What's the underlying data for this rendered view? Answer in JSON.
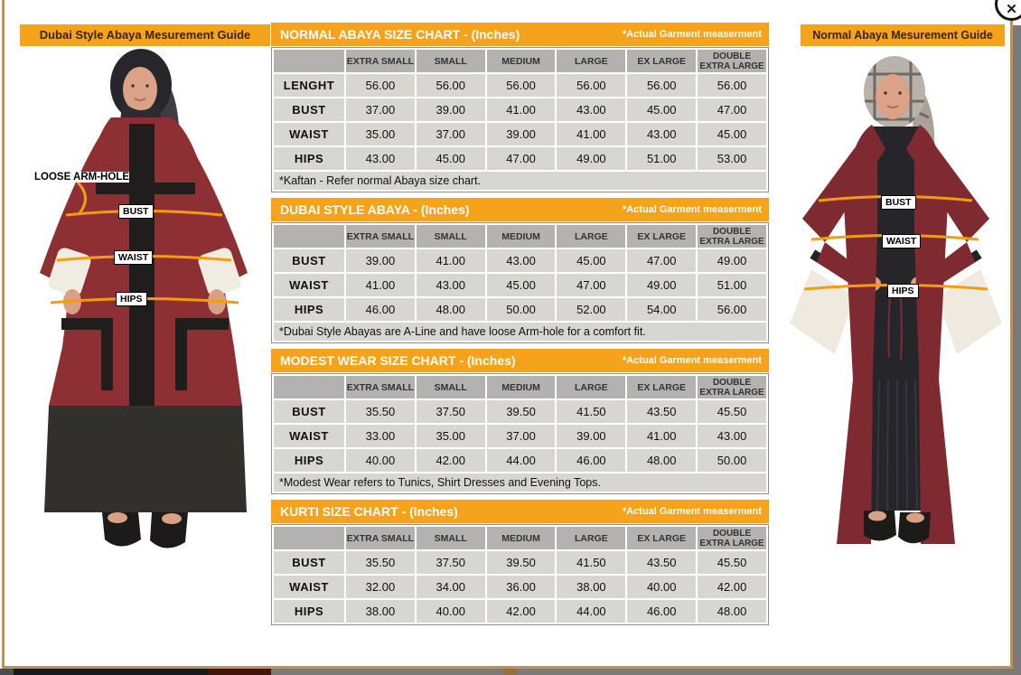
{
  "window": {
    "close_label": "✕"
  },
  "panels": {
    "left_title": "Dubai Style Abaya Mesurement Guide",
    "right_title": "Normal Abaya Mesurement Guide"
  },
  "figures": {
    "left": {
      "armhole_label": "LOOSE ARM-HOLE",
      "bust_label": "BUST",
      "waist_label": "WAIST",
      "hips_label": "HIPS"
    },
    "right": {
      "bust_label": "BUST",
      "waist_label": "WAIST",
      "hips_label": "HIPS"
    }
  },
  "size_charts": [
    {
      "title": "NORMAL ABAYA SIZE CHART - (Inches)",
      "note": "*Actual Garment measerment",
      "columns": [
        "",
        "EXTRA SMALL",
        "SMALL",
        "MEDIUM",
        "LARGE",
        "EX LARGE",
        "DOUBLE EXTRA LARGE"
      ],
      "rows": [
        {
          "label": "LENGHT",
          "values": [
            "56.00",
            "56.00",
            "56.00",
            "56.00",
            "56.00",
            "56.00"
          ]
        },
        {
          "label": "BUST",
          "values": [
            "37.00",
            "39.00",
            "41.00",
            "43.00",
            "45.00",
            "47.00"
          ]
        },
        {
          "label": "WAIST",
          "values": [
            "35.00",
            "37.00",
            "39.00",
            "41.00",
            "43.00",
            "45.00"
          ]
        },
        {
          "label": "HIPS",
          "values": [
            "43.00",
            "45.00",
            "47.00",
            "49.00",
            "51.00",
            "53.00"
          ]
        }
      ],
      "footer": "*Kaftan - Refer normal Abaya size chart."
    },
    {
      "title": "DUBAI STYLE ABAYA - (Inches)",
      "note": "*Actual Garment measerment",
      "columns": [
        "",
        "EXTRA SMALL",
        "SMALL",
        "MEDIUM",
        "LARGE",
        "EX LARGE",
        "DOUBLE EXTRA LARGE"
      ],
      "rows": [
        {
          "label": "BUST",
          "values": [
            "39.00",
            "41.00",
            "43.00",
            "45.00",
            "47.00",
            "49.00"
          ]
        },
        {
          "label": "WAIST",
          "values": [
            "41.00",
            "43.00",
            "45.00",
            "47.00",
            "49.00",
            "51.00"
          ]
        },
        {
          "label": "HIPS",
          "values": [
            "46.00",
            "48.00",
            "50.00",
            "52.00",
            "54.00",
            "56.00"
          ]
        }
      ],
      "footer": "*Dubai Style Abayas are A-Line and have loose Arm-hole for a comfort fit."
    },
    {
      "title": "MODEST WEAR SIZE CHART - (Inches)",
      "note": "*Actual Garment measerment",
      "columns": [
        "",
        "EXTRA SMALL",
        "SMALL",
        "MEDIUM",
        "LARGE",
        "EX LARGE",
        "DOUBLE EXTRA LARGE"
      ],
      "rows": [
        {
          "label": "BUST",
          "values": [
            "35.50",
            "37.50",
            "39.50",
            "41.50",
            "43.50",
            "45.50"
          ]
        },
        {
          "label": "WAIST",
          "values": [
            "33.00",
            "35.00",
            "37.00",
            "39.00",
            "41.00",
            "43.00"
          ]
        },
        {
          "label": "HIPS",
          "values": [
            "40.00",
            "42.00",
            "44.00",
            "46.00",
            "48.00",
            "50.00"
          ]
        }
      ],
      "footer": "*Modest Wear refers to Tunics, Shirt Dresses and Evening Tops."
    },
    {
      "title": "KURTI SIZE CHART - (Inches)",
      "note": "*Actual Garment measerment",
      "columns": [
        "",
        "EXTRA SMALL",
        "SMALL",
        "MEDIUM",
        "LARGE",
        "EX LARGE",
        "DOUBLE EXTRA LARGE"
      ],
      "rows": [
        {
          "label": "BUST",
          "values": [
            "35.50",
            "37.50",
            "39.50",
            "41.50",
            "43.50",
            "45.50"
          ]
        },
        {
          "label": "WAIST",
          "values": [
            "32.00",
            "34.00",
            "36.00",
            "38.00",
            "40.00",
            "42.00"
          ]
        },
        {
          "label": "HIPS",
          "values": [
            "38.00",
            "40.00",
            "42.00",
            "44.00",
            "46.00",
            "48.00"
          ]
        }
      ],
      "footer": null
    }
  ],
  "colors": {
    "accent_orange": "#F6A31C",
    "measure_line": "#F59C0B",
    "header_gray": "#B3B2B0",
    "cell_gray": "#D7D6D3",
    "modal_border": "#C1914E"
  }
}
